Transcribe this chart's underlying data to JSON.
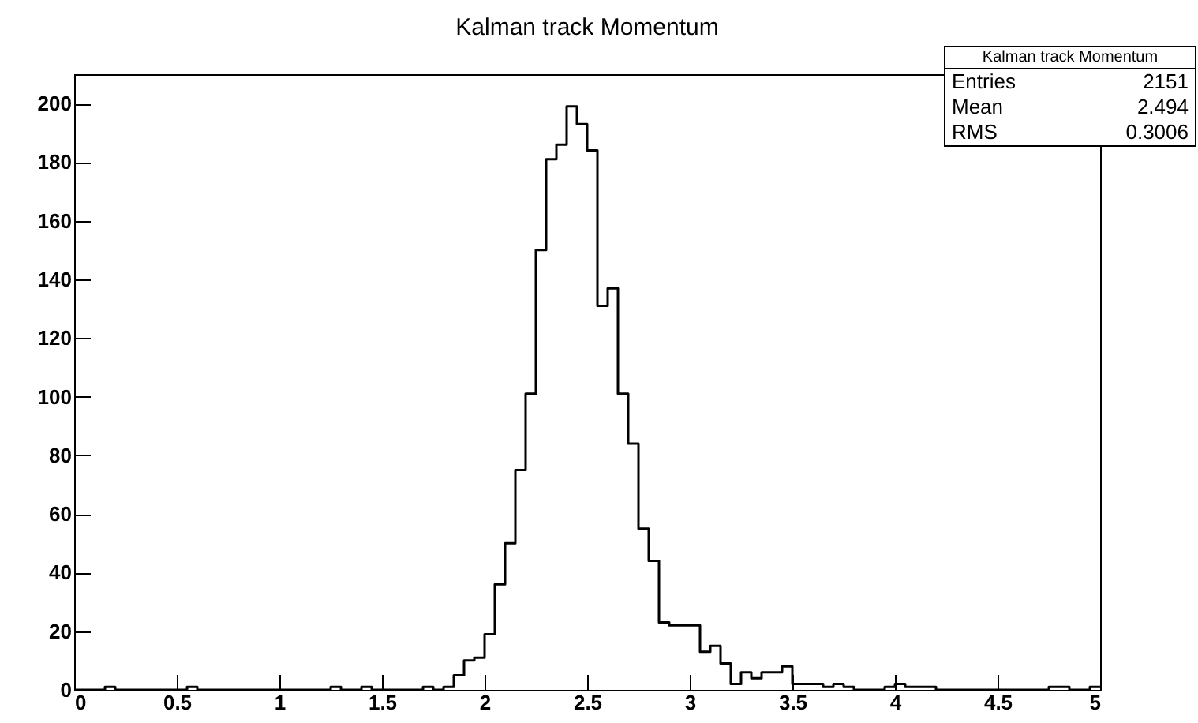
{
  "chart_data": {
    "type": "histogram",
    "title": "Kalman track Momentum",
    "color": "#000000",
    "bins": [
      0,
      0.05,
      0.1,
      0.15,
      0.2,
      0.25,
      0.3,
      0.35,
      0.4,
      0.45,
      0.5,
      0.55,
      0.6,
      0.65,
      0.7,
      0.75,
      0.8,
      0.85,
      0.9,
      0.95,
      1,
      1.05,
      1.1,
      1.15,
      1.2,
      1.25,
      1.3,
      1.35,
      1.4,
      1.45,
      1.5,
      1.55,
      1.6,
      1.65,
      1.7,
      1.75,
      1.8,
      1.85,
      1.9,
      1.95,
      2,
      2.05,
      2.1,
      2.15,
      2.2,
      2.25,
      2.3,
      2.35,
      2.4,
      2.45,
      2.5,
      2.55,
      2.6,
      2.65,
      2.7,
      2.75,
      2.8,
      2.85,
      2.9,
      2.95,
      3,
      3.05,
      3.1,
      3.15,
      3.2,
      3.25,
      3.3,
      3.35,
      3.4,
      3.45,
      3.5,
      3.55,
      3.6,
      3.65,
      3.7,
      3.75,
      3.8,
      3.85,
      3.9,
      3.95,
      4,
      4.05,
      4.1,
      4.15,
      4.2,
      4.25,
      4.3,
      4.35,
      4.4,
      4.45,
      4.5,
      4.55,
      4.6,
      4.65,
      4.7,
      4.75,
      4.8,
      4.85,
      4.9,
      4.95,
      5
    ],
    "values": [
      0,
      0,
      0,
      1,
      0,
      0,
      0,
      0,
      0,
      0,
      0,
      1,
      0,
      0,
      0,
      0,
      0,
      0,
      0,
      0,
      0,
      0,
      0,
      0,
      0,
      1,
      0,
      0,
      1,
      0,
      0,
      0,
      0,
      0,
      1,
      0,
      1,
      5,
      10,
      11,
      19,
      36,
      50,
      75,
      101,
      150,
      181,
      186,
      199,
      193,
      184,
      131,
      137,
      101,
      84,
      55,
      44,
      23,
      22,
      22,
      22,
      13,
      15,
      9,
      2,
      6,
      4,
      6,
      6,
      8,
      2,
      2,
      2,
      1,
      2,
      1,
      0,
      0,
      0,
      1,
      2,
      1,
      1,
      1,
      0,
      0,
      0,
      0,
      0,
      0,
      0,
      0,
      0,
      0,
      0,
      1,
      1,
      0,
      0,
      1
    ],
    "xlim": [
      0,
      5
    ],
    "xticks": [
      0,
      0.5,
      1,
      1.5,
      2,
      2.5,
      3,
      3.5,
      4,
      4.5,
      5
    ],
    "ylim": [
      0,
      210
    ],
    "yticks": [
      0,
      20,
      40,
      60,
      80,
      100,
      120,
      140,
      160,
      180,
      200
    ],
    "annotations": [
      "Kalman track Momentum",
      "Entries 2151",
      "Mean 2.494",
      "RMS 0.3006"
    ]
  }
}
